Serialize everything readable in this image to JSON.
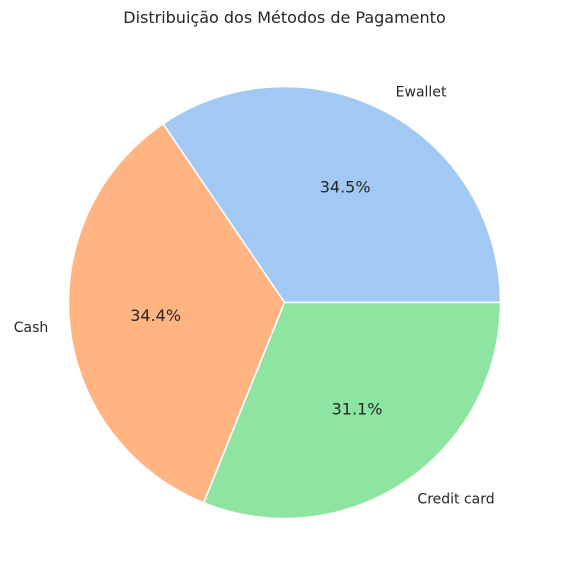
{
  "chart_data": {
    "type": "pie",
    "title": "Distribuição dos Métodos de Pagamento",
    "labels": [
      "Ewallet",
      "Cash",
      "Credit card"
    ],
    "values": [
      34.5,
      34.4,
      31.1
    ],
    "value_labels": [
      "34.5%",
      "34.4%",
      "31.1%"
    ],
    "colors": [
      "#a1c9f4",
      "#ffb482",
      "#8de5a1"
    ],
    "start_angle_deg": 0,
    "direction": "counterclockwise"
  }
}
